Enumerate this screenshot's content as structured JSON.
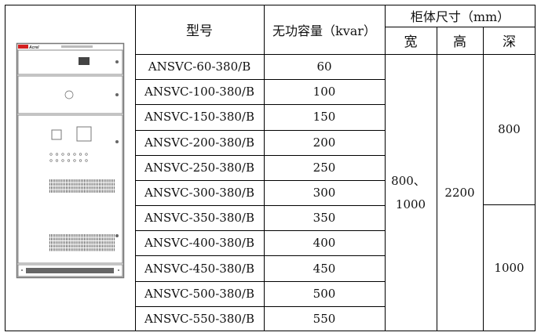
{
  "header": {
    "model": "型号",
    "capacity": "无功容量（kvar）",
    "cabinet_size": "柜体尺寸（mm）",
    "width": "宽",
    "height": "高",
    "depth": "深"
  },
  "rows": [
    {
      "model": "ANSVC-60-380/B",
      "capacity": "60"
    },
    {
      "model": "ANSVC-100-380/B",
      "capacity": "100"
    },
    {
      "model": "ANSVC-150-380/B",
      "capacity": "150"
    },
    {
      "model": "ANSVC-200-380/B",
      "capacity": "200"
    },
    {
      "model": "ANSVC-250-380/B",
      "capacity": "250"
    },
    {
      "model": "ANSVC-300-380/B",
      "capacity": "300"
    },
    {
      "model": "ANSVC-350-380/B",
      "capacity": "350"
    },
    {
      "model": "ANSVC-400-380/B",
      "capacity": "400"
    },
    {
      "model": "ANSVC-450-380/B",
      "capacity": "450"
    },
    {
      "model": "ANSVC-500-380/B",
      "capacity": "500"
    },
    {
      "model": "ANSVC-550-380/B",
      "capacity": "550"
    }
  ],
  "dimensions": {
    "width_line1": "800、",
    "width_line2": "1000",
    "height": "2200",
    "depth_upper": "800",
    "depth_lower": "1000"
  },
  "cabinet_image": {
    "logo": "Acrel",
    "logo_color": "#d42020"
  }
}
